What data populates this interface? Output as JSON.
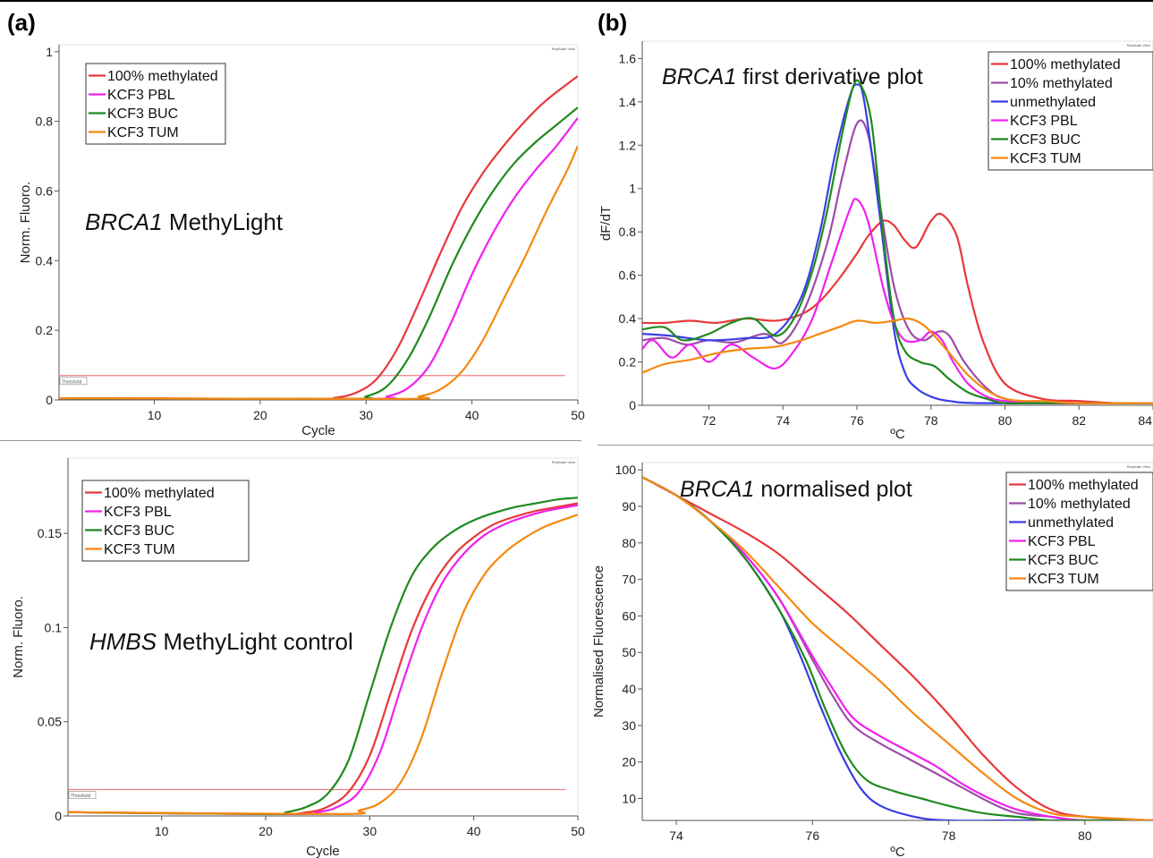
{
  "panel_labels": {
    "a": "(a)",
    "b": "(b)"
  },
  "colors": {
    "100% methylated": "#e8373b",
    "10% methylated": "#9b4ea8",
    "unmethylated": "#3a3ee6",
    "KCF3 PBL": "#f020f0",
    "KCF3 BUC": "#1e8a1e",
    "KCF3 TUM": "#f5880f",
    "threshold": "#f08080"
  },
  "chart_data": [
    {
      "id": "a-top",
      "type": "line",
      "title": "BRCA1 MethyLight",
      "title_italic": "BRCA1",
      "title_rest": " MethyLight",
      "xlabel": "Cycle",
      "ylabel": "Norm. Fluoro.",
      "xlim": [
        1,
        50
      ],
      "ylim": [
        0,
        1.02
      ],
      "xticks": [
        10,
        20,
        30,
        40,
        50
      ],
      "yticks": [
        0,
        0.2,
        0.4,
        0.6,
        0.8,
        1
      ],
      "ytick_labels": [
        "0",
        "0.2",
        "0.4",
        "0.6",
        "0.8",
        "1"
      ],
      "threshold": 0.07,
      "threshold_label": "Threshold",
      "corner_label": "Replicate View",
      "legend_position": "top-left",
      "series": [
        {
          "name": "100% methylated",
          "x": [
            1,
            25,
            27,
            29,
            31,
            33,
            35,
            37,
            39,
            41,
            43,
            45,
            47,
            50
          ],
          "y": [
            0.005,
            0.003,
            0.006,
            0.02,
            0.06,
            0.15,
            0.28,
            0.42,
            0.55,
            0.65,
            0.73,
            0.8,
            0.86,
            0.93
          ]
        },
        {
          "name": "KCF3 PBL",
          "x": [
            1,
            30,
            32,
            34,
            36,
            38,
            40,
            42,
            44,
            46,
            48,
            50
          ],
          "y": [
            0.005,
            0.003,
            0.01,
            0.035,
            0.1,
            0.22,
            0.36,
            0.48,
            0.58,
            0.66,
            0.73,
            0.81
          ]
        },
        {
          "name": "KCF3 BUC",
          "x": [
            1,
            28,
            30,
            32,
            34,
            36,
            38,
            40,
            42,
            44,
            46,
            48,
            50
          ],
          "y": [
            0.005,
            0.003,
            0.01,
            0.04,
            0.12,
            0.24,
            0.38,
            0.5,
            0.6,
            0.68,
            0.74,
            0.79,
            0.84
          ]
        },
        {
          "name": "KCF3 TUM",
          "x": [
            1,
            33,
            35,
            37,
            39,
            41,
            43,
            45,
            47,
            49,
            50
          ],
          "y": [
            0.005,
            0.003,
            0.01,
            0.03,
            0.08,
            0.17,
            0.29,
            0.41,
            0.54,
            0.66,
            0.73
          ]
        }
      ]
    },
    {
      "id": "a-bottom",
      "type": "line",
      "title": "HMBS MethyLight control",
      "title_italic": "HMBS",
      "title_rest": " MethyLight control",
      "xlabel": "Cycle",
      "ylabel": "Norm. Fluoro.",
      "xlim": [
        1,
        50
      ],
      "ylim": [
        0,
        0.19
      ],
      "xticks": [
        10,
        20,
        30,
        40,
        50
      ],
      "yticks": [
        0,
        0.05,
        0.1,
        0.15
      ],
      "ytick_labels": [
        "0",
        "0.05",
        "0.1",
        "0.15"
      ],
      "threshold": 0.014,
      "threshold_label": "Threshold",
      "corner_label": "Replicate View",
      "legend_position": "top-left",
      "series": [
        {
          "name": "100% methylated",
          "x": [
            1,
            20,
            24,
            26,
            28,
            30,
            32,
            34,
            36,
            38,
            40,
            42,
            44,
            46,
            48,
            50
          ],
          "y": [
            0.002,
            0.001,
            0.002,
            0.005,
            0.013,
            0.032,
            0.065,
            0.098,
            0.122,
            0.138,
            0.148,
            0.155,
            0.159,
            0.162,
            0.164,
            0.166
          ]
        },
        {
          "name": "KCF3 PBL",
          "x": [
            1,
            22,
            25,
            27,
            29,
            31,
            33,
            35,
            37,
            39,
            41,
            43,
            45,
            47,
            50
          ],
          "y": [
            0.002,
            0.001,
            0.002,
            0.005,
            0.013,
            0.034,
            0.068,
            0.1,
            0.124,
            0.139,
            0.149,
            0.155,
            0.159,
            0.162,
            0.165
          ]
        },
        {
          "name": "KCF3 BUC",
          "x": [
            1,
            20,
            22,
            24,
            26,
            28,
            30,
            32,
            34,
            36,
            38,
            40,
            42,
            44,
            46,
            48,
            50
          ],
          "y": [
            0.002,
            0.001,
            0.002,
            0.005,
            0.012,
            0.03,
            0.065,
            0.1,
            0.127,
            0.142,
            0.151,
            0.157,
            0.161,
            0.164,
            0.166,
            0.168,
            0.169
          ]
        },
        {
          "name": "KCF3 TUM",
          "x": [
            1,
            27,
            29,
            31,
            33,
            35,
            37,
            39,
            41,
            43,
            45,
            47,
            50
          ],
          "y": [
            0.002,
            0.001,
            0.003,
            0.007,
            0.018,
            0.042,
            0.077,
            0.108,
            0.128,
            0.14,
            0.148,
            0.154,
            0.16
          ]
        }
      ]
    },
    {
      "id": "b-top",
      "type": "line",
      "title": "BRCA1 first derivative plot",
      "title_italic": "BRCA1",
      "title_rest": " first derivative plot",
      "xlabel": "ºC",
      "ylabel": "dF/dT",
      "xlim": [
        70.2,
        84
      ],
      "ylim": [
        0,
        1.68
      ],
      "xticks": [
        72,
        74,
        76,
        78,
        80,
        82,
        84
      ],
      "yticks": [
        0,
        0.2,
        0.4,
        0.6,
        0.8,
        1,
        1.2,
        1.4,
        1.6
      ],
      "ytick_labels": [
        "0",
        "0.2",
        "0.4",
        "0.6",
        "0.8",
        "1",
        "1.2",
        "1.4",
        "1.6"
      ],
      "corner_label": "Replicate View",
      "legend_position": "top-right",
      "series": [
        {
          "name": "100% methylated",
          "x": [
            70.2,
            70.8,
            71.5,
            72.2,
            73,
            73.8,
            74.5,
            75,
            75.5,
            76,
            76.3,
            76.7,
            77,
            77.3,
            77.6,
            78,
            78.3,
            78.7,
            79,
            79.4,
            80,
            81,
            82,
            83,
            84
          ],
          "y": [
            0.38,
            0.38,
            0.39,
            0.38,
            0.4,
            0.39,
            0.42,
            0.48,
            0.58,
            0.7,
            0.78,
            0.85,
            0.83,
            0.76,
            0.73,
            0.85,
            0.88,
            0.78,
            0.55,
            0.3,
            0.1,
            0.03,
            0.02,
            0.01,
            0.01
          ]
        },
        {
          "name": "10% methylated",
          "x": [
            70.2,
            70.8,
            71.4,
            72,
            72.7,
            73.5,
            74,
            74.6,
            75.2,
            75.6,
            76,
            76.3,
            76.6,
            77,
            77.4,
            77.8,
            78.2,
            78.5,
            78.9,
            79.5,
            80,
            81,
            82,
            84
          ],
          "y": [
            0.3,
            0.31,
            0.28,
            0.3,
            0.29,
            0.33,
            0.29,
            0.45,
            0.75,
            1.05,
            1.3,
            1.25,
            0.95,
            0.55,
            0.35,
            0.3,
            0.34,
            0.32,
            0.2,
            0.08,
            0.03,
            0.01,
            0.01,
            0.01
          ]
        },
        {
          "name": "unmethylated",
          "x": [
            70.2,
            71,
            72,
            73,
            73.8,
            74.5,
            75,
            75.4,
            75.8,
            76,
            76.2,
            76.6,
            77,
            77.3,
            77.6,
            78,
            78.5,
            79.5,
            84
          ],
          "y": [
            0.33,
            0.32,
            0.3,
            0.31,
            0.33,
            0.5,
            0.8,
            1.15,
            1.42,
            1.48,
            1.4,
            0.9,
            0.35,
            0.15,
            0.08,
            0.04,
            0.02,
            0.01,
            0.01
          ]
        },
        {
          "name": "KCF3 PBL",
          "x": [
            70.2,
            70.5,
            71,
            71.5,
            72,
            72.6,
            73.2,
            73.8,
            74.3,
            74.8,
            75.3,
            75.8,
            76,
            76.3,
            76.7,
            77,
            77.3,
            77.7,
            78,
            78.3,
            78.6,
            79,
            79.5,
            80,
            81,
            84
          ],
          "y": [
            0.26,
            0.3,
            0.22,
            0.28,
            0.2,
            0.28,
            0.22,
            0.17,
            0.25,
            0.4,
            0.65,
            0.9,
            0.95,
            0.85,
            0.55,
            0.38,
            0.3,
            0.3,
            0.34,
            0.3,
            0.2,
            0.1,
            0.04,
            0.02,
            0.01,
            0.01
          ]
        },
        {
          "name": "KCF3 BUC",
          "x": [
            70.2,
            70.8,
            71.3,
            72,
            72.6,
            73.2,
            73.8,
            74.3,
            74.8,
            75.2,
            75.6,
            75.9,
            76.1,
            76.4,
            76.7,
            77,
            77.3,
            77.7,
            78.1,
            78.5,
            79,
            79.5,
            80,
            81,
            84
          ],
          "y": [
            0.35,
            0.36,
            0.3,
            0.33,
            0.38,
            0.4,
            0.32,
            0.4,
            0.62,
            0.9,
            1.25,
            1.47,
            1.48,
            1.3,
            0.8,
            0.4,
            0.25,
            0.2,
            0.18,
            0.12,
            0.06,
            0.03,
            0.01,
            0.01,
            0.01
          ]
        },
        {
          "name": "KCF3 TUM",
          "x": [
            70.2,
            70.8,
            71.5,
            72.2,
            73,
            73.8,
            74.5,
            75,
            75.5,
            76,
            76.5,
            77,
            77.4,
            77.8,
            78.2,
            78.6,
            79,
            79.5,
            80,
            80.5,
            81,
            82,
            84
          ],
          "y": [
            0.15,
            0.19,
            0.21,
            0.24,
            0.26,
            0.27,
            0.3,
            0.33,
            0.36,
            0.39,
            0.38,
            0.39,
            0.4,
            0.37,
            0.3,
            0.22,
            0.14,
            0.07,
            0.03,
            0.02,
            0.02,
            0.01,
            0.01
          ]
        }
      ]
    },
    {
      "id": "b-bottom",
      "type": "line",
      "title": "BRCA1 normalised plot",
      "title_italic": "BRCA1",
      "title_rest": " normalised plot",
      "xlabel": "ºC",
      "ylabel": "Normalised Fluorescence",
      "xlim": [
        73.5,
        81
      ],
      "ylim": [
        4,
        102
      ],
      "xticks": [
        74,
        76,
        78,
        80
      ],
      "yticks": [
        10,
        20,
        30,
        40,
        50,
        60,
        70,
        80,
        90,
        100
      ],
      "ytick_labels": [
        "10",
        "20",
        "30",
        "40",
        "50",
        "60",
        "70",
        "80",
        "90",
        "100"
      ],
      "corner_label": "Replicate View",
      "legend_position": "top-right",
      "series": [
        {
          "name": "100% methylated",
          "x": [
            73.5,
            74,
            74.5,
            75,
            75.5,
            76,
            76.5,
            77,
            77.5,
            78,
            78.5,
            79,
            79.5,
            80,
            81
          ],
          "y": [
            98,
            93,
            88,
            83,
            77,
            69,
            61,
            52,
            43,
            33,
            22,
            13,
            7,
            5,
            4
          ]
        },
        {
          "name": "10% methylated",
          "x": [
            73.5,
            74,
            74.5,
            75,
            75.5,
            76,
            76.3,
            76.6,
            77,
            77.4,
            77.8,
            78.2,
            78.6,
            79,
            79.5,
            80,
            81
          ],
          "y": [
            98,
            93,
            86,
            77,
            65,
            48,
            38,
            30,
            25,
            21,
            17,
            13,
            9,
            6,
            5,
            4,
            4
          ]
        },
        {
          "name": "unmethylated",
          "x": [
            73.5,
            74,
            74.5,
            75,
            75.5,
            75.8,
            76.1,
            76.4,
            76.7,
            77,
            77.5,
            78,
            79,
            81
          ],
          "y": [
            98,
            93,
            86,
            76,
            62,
            50,
            36,
            23,
            13,
            8,
            5,
            4,
            4,
            4
          ]
        },
        {
          "name": "KCF3 PBL",
          "x": [
            73.5,
            74,
            74.5,
            75,
            75.5,
            76,
            76.3,
            76.6,
            77,
            77.4,
            77.8,
            78.2,
            78.6,
            79,
            79.5,
            80,
            81
          ],
          "y": [
            98,
            93,
            86,
            77,
            65,
            49,
            40,
            32,
            27,
            23,
            19,
            14,
            10,
            7,
            5,
            4,
            4
          ]
        },
        {
          "name": "KCF3 BUC",
          "x": [
            73.5,
            74,
            74.5,
            75,
            75.5,
            75.9,
            76.2,
            76.5,
            76.8,
            77.2,
            77.6,
            78,
            78.5,
            79,
            79.5,
            80,
            81
          ],
          "y": [
            98,
            93,
            86,
            76,
            62,
            48,
            34,
            22,
            15,
            12,
            10,
            8,
            6,
            5,
            4,
            4,
            4
          ]
        },
        {
          "name": "KCF3 TUM",
          "x": [
            73.5,
            74,
            74.5,
            75,
            75.5,
            76,
            76.5,
            77,
            77.5,
            78,
            78.5,
            79,
            79.5,
            80,
            81
          ],
          "y": [
            98,
            93,
            86,
            78,
            68,
            58,
            50,
            42,
            33,
            25,
            17,
            10,
            6,
            5,
            4
          ]
        }
      ]
    }
  ]
}
